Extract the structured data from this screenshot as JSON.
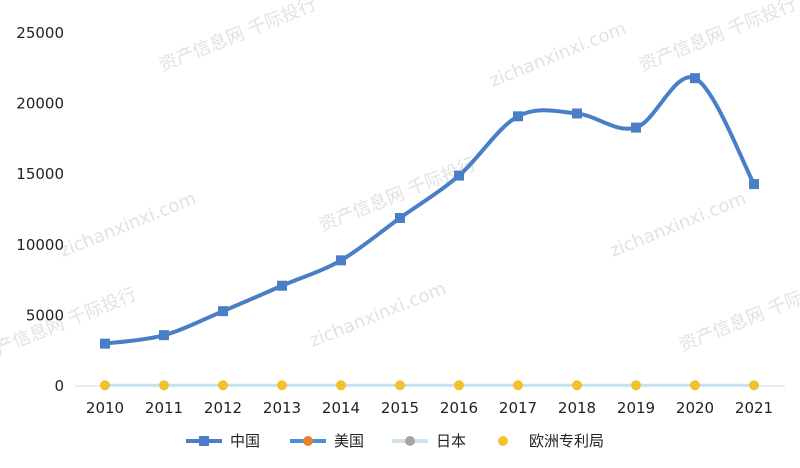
{
  "chart_data": {
    "type": "line",
    "x": [
      "2010",
      "2011",
      "2012",
      "2013",
      "2014",
      "2015",
      "2016",
      "2017",
      "2018",
      "2019",
      "2020",
      "2021"
    ],
    "y_ticks": [
      "0",
      "5000",
      "10000",
      "15000",
      "20000",
      "25000"
    ],
    "ylim": [
      0,
      25000
    ],
    "grid": false,
    "legend_position": "bottom",
    "series": [
      {
        "name": "中国",
        "color": "#4a7fc8",
        "marker": "square",
        "values": [
          3000,
          3600,
          5300,
          7100,
          8900,
          11900,
          14900,
          19100,
          19300,
          18300,
          21800,
          14300
        ]
      },
      {
        "name": "美国",
        "color": "#ed7d31",
        "marker": "circle",
        "values": [
          50,
          50,
          50,
          50,
          50,
          50,
          50,
          50,
          50,
          50,
          50,
          50
        ]
      },
      {
        "name": "日本",
        "color": "#a5a5a5",
        "marker": "circle",
        "values": [
          50,
          50,
          50,
          50,
          50,
          50,
          50,
          50,
          50,
          50,
          50,
          50
        ]
      },
      {
        "name": "欧洲专利局",
        "color": "#f2c12e",
        "marker": "circle",
        "values": [
          50,
          50,
          50,
          50,
          50,
          50,
          50,
          50,
          50,
          50,
          50,
          50
        ]
      }
    ],
    "watermark_texts": [
      "资产信息网 千际投行",
      "zichanxinxi.com"
    ]
  }
}
